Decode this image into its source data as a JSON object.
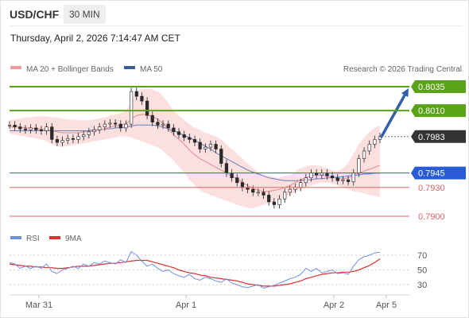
{
  "header": {
    "symbol": "USD/CHF",
    "timeframe": "30 MIN",
    "datetime": "Thursday, April 2, 2026 7:14:47 AM CET"
  },
  "legend": {
    "ma20": "MA 20 + Bollinger Bands",
    "ma50": "MA 50",
    "source": "Research © 2026 Trading Central",
    "rsi": "RSI",
    "ma9": "9MA"
  },
  "colors": {
    "resistance": "#5aa317",
    "current": "#333333",
    "support_main": "#2a5bd7",
    "support": "#e06666",
    "bollinger": "#f9c6c6",
    "ma20": "#e08a8a",
    "ma50": "#6b7fb5",
    "arrow": "#2e5fa8",
    "rsi": "#6f8fe0",
    "rsi_ma": "#e03030"
  },
  "chart_data": {
    "type": "line",
    "title": "USD/CHF 30 MIN",
    "x_ticks": [
      "Mar 31",
      "Apr 1",
      "Apr 2",
      "Apr 5"
    ],
    "levels": [
      {
        "label": "0.8035",
        "value": 0.8035,
        "kind": "resistance"
      },
      {
        "label": "0.8010",
        "value": 0.801,
        "kind": "resistance"
      },
      {
        "label": "0.7983",
        "value": 0.7983,
        "kind": "current"
      },
      {
        "label": "0.7945",
        "value": 0.7945,
        "kind": "support_main"
      },
      {
        "label": "0.7930",
        "value": 0.793,
        "kind": "support"
      },
      {
        "label": "0.7900",
        "value": 0.79,
        "kind": "support"
      }
    ],
    "price_series": [
      0.7995,
      0.7993,
      0.7991,
      0.799,
      0.7992,
      0.799,
      0.7989,
      0.7993,
      0.798,
      0.7977,
      0.7979,
      0.7981,
      0.798,
      0.7983,
      0.7985,
      0.7988,
      0.799,
      0.7993,
      0.7996,
      0.7997,
      0.7996,
      0.7992,
      0.7996,
      0.803,
      0.8025,
      0.802,
      0.8005,
      0.7998,
      0.7995,
      0.7996,
      0.7992,
      0.7988,
      0.7985,
      0.7982,
      0.798,
      0.7977,
      0.797,
      0.7972,
      0.7975,
      0.797,
      0.7955,
      0.7945,
      0.794,
      0.7935,
      0.793,
      0.7928,
      0.7925,
      0.7925,
      0.7922,
      0.7915,
      0.7912,
      0.7918,
      0.7925,
      0.7928,
      0.793,
      0.7935,
      0.794,
      0.7945,
      0.7943,
      0.7945,
      0.7942,
      0.794,
      0.7937,
      0.7938,
      0.7936,
      0.7945,
      0.796,
      0.7968,
      0.7975,
      0.798,
      0.7983
    ],
    "bb_upper": [
      0.8,
      0.8001,
      0.8002,
      0.8003,
      0.8003,
      0.8004,
      0.8004,
      0.8004,
      0.8003,
      0.8003,
      0.8002,
      0.8001,
      0.8001,
      0.8,
      0.8,
      0.8,
      0.8001,
      0.8002,
      0.8003,
      0.8005,
      0.8006,
      0.8007,
      0.801,
      0.802,
      0.803,
      0.8033,
      0.8033,
      0.8032,
      0.803,
      0.8025,
      0.8018,
      0.801,
      0.8005,
      0.8,
      0.7996,
      0.7992,
      0.799,
      0.7987,
      0.7985,
      0.7983,
      0.798,
      0.7975,
      0.797,
      0.7965,
      0.796,
      0.7955,
      0.795,
      0.7946,
      0.7943,
      0.7942,
      0.7941,
      0.794,
      0.7942,
      0.7943,
      0.7947,
      0.795,
      0.7952,
      0.7953,
      0.7953,
      0.7952,
      0.795,
      0.7948,
      0.7947,
      0.795,
      0.7955,
      0.7965,
      0.7975,
      0.7982,
      0.7988,
      0.7992,
      0.7994
    ],
    "bb_lower": [
      0.7986,
      0.7985,
      0.7984,
      0.7983,
      0.7982,
      0.7981,
      0.798,
      0.7978,
      0.7975,
      0.7973,
      0.7972,
      0.7973,
      0.7974,
      0.7975,
      0.7976,
      0.7977,
      0.7978,
      0.7979,
      0.798,
      0.7981,
      0.7982,
      0.7983,
      0.7983,
      0.7982,
      0.798,
      0.7978,
      0.7976,
      0.7974,
      0.7972,
      0.7968,
      0.7963,
      0.7958,
      0.7952,
      0.7945,
      0.7938,
      0.7932,
      0.7927,
      0.7924,
      0.7922,
      0.792,
      0.7918,
      0.7916,
      0.7914,
      0.7912,
      0.791,
      0.7909,
      0.7908,
      0.791,
      0.7912,
      0.7914,
      0.7916,
      0.7918,
      0.792,
      0.7922,
      0.7925,
      0.7928,
      0.793,
      0.7932,
      0.7934,
      0.7935,
      0.7935,
      0.7934,
      0.7932,
      0.793,
      0.7928,
      0.7926,
      0.7925,
      0.7924,
      0.7922,
      0.7921,
      0.792
    ],
    "ma20": [
      0.7993,
      0.7993,
      0.7993,
      0.7992,
      0.7992,
      0.7991,
      0.7991,
      0.799,
      0.7989,
      0.7988,
      0.7987,
      0.7987,
      0.7987,
      0.7987,
      0.7988,
      0.7988,
      0.7989,
      0.799,
      0.7991,
      0.7993,
      0.7994,
      0.7995,
      0.7996,
      0.8001,
      0.8005,
      0.8006,
      0.8006,
      0.8004,
      0.8001,
      0.7997,
      0.7991,
      0.7985,
      0.798,
      0.7975,
      0.7969,
      0.7964,
      0.796,
      0.7957,
      0.7954,
      0.7951,
      0.7948,
      0.7945,
      0.7942,
      0.7939,
      0.7935,
      0.7932,
      0.7929,
      0.7927,
      0.7926,
      0.7926,
      0.7927,
      0.7928,
      0.793,
      0.7932,
      0.7935,
      0.7938,
      0.794,
      0.7942,
      0.7943,
      0.7943,
      0.7942,
      0.7941,
      0.7939,
      0.7939,
      0.794,
      0.7942,
      0.7945,
      0.7947,
      0.7949,
      0.7951,
      0.7953
    ],
    "ma50": [
      0.7989,
      0.7989,
      0.7989,
      0.7989,
      0.7989,
      0.7989,
      0.7989,
      0.7989,
      0.7989,
      0.7989,
      0.7989,
      0.7989,
      0.7989,
      0.7989,
      0.7989,
      0.7989,
      0.799,
      0.799,
      0.7991,
      0.7991,
      0.7992,
      0.7992,
      0.7993,
      0.7994,
      0.7995,
      0.7995,
      0.7995,
      0.7995,
      0.7994,
      0.7993,
      0.7991,
      0.7989,
      0.7987,
      0.7984,
      0.7982,
      0.7979,
      0.7976,
      0.7973,
      0.797,
      0.7966,
      0.7963,
      0.796,
      0.7957,
      0.7954,
      0.7951,
      0.7948,
      0.7946,
      0.7944,
      0.7942,
      0.794,
      0.7939,
      0.7938,
      0.7937,
      0.7937,
      0.7937,
      0.7937,
      0.7938,
      0.7938,
      0.7939,
      0.7939,
      0.794,
      0.794,
      0.7941,
      0.7941,
      0.7942,
      0.7943,
      0.7943,
      0.7944,
      0.7944,
      0.7945,
      0.7945
    ],
    "rsi_ticks": [
      70,
      50,
      30
    ],
    "rsi": [
      60,
      58,
      52,
      55,
      52,
      55,
      52,
      58,
      48,
      45,
      50,
      52,
      55,
      52,
      58,
      55,
      60,
      58,
      62,
      60,
      58,
      64,
      60,
      75,
      70,
      62,
      55,
      58,
      52,
      48,
      50,
      45,
      42,
      40,
      44,
      38,
      36,
      40,
      38,
      35,
      33,
      38,
      32,
      30,
      27,
      26,
      28,
      30,
      25,
      27,
      29,
      32,
      35,
      38,
      40,
      44,
      52,
      48,
      52,
      46,
      48,
      50,
      45,
      46,
      44,
      55,
      64,
      68,
      70,
      73,
      74
    ],
    "rsi_ma": [
      58,
      57,
      56,
      55,
      55,
      54,
      54,
      53,
      53,
      52,
      52,
      53,
      54,
      55,
      55,
      55,
      56,
      57,
      58,
      59,
      59,
      60,
      61,
      62,
      63,
      63,
      63,
      61,
      59,
      57,
      55,
      53,
      50,
      48,
      46,
      45,
      43,
      42,
      40,
      39,
      38,
      37,
      36,
      35,
      33,
      31,
      30,
      29,
      28,
      28,
      28,
      29,
      30,
      31,
      33,
      35,
      38,
      40,
      42,
      44,
      45,
      46,
      46,
      47,
      47,
      48,
      50,
      53,
      56,
      60,
      65
    ]
  }
}
